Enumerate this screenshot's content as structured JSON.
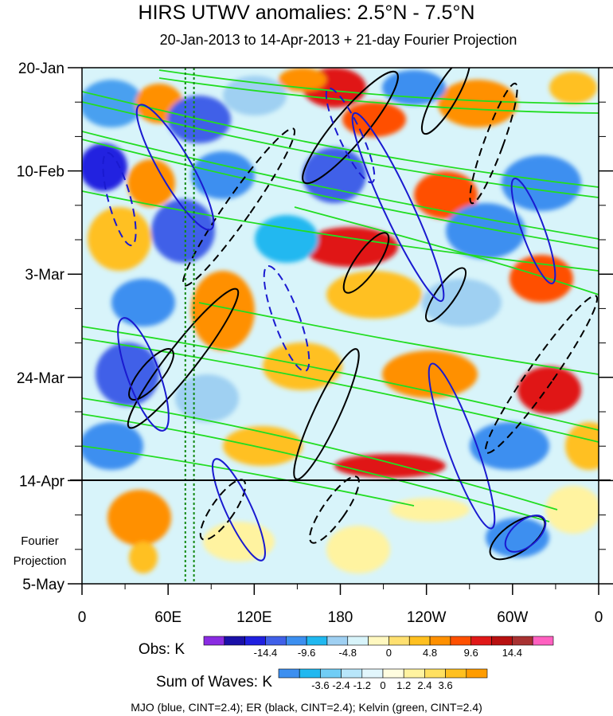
{
  "chart_data": {
    "type": "heatmap",
    "title": "HIRS UTWV anomalies: 2.5°N - 7.5°N",
    "subtitle": "20-Jan-2013 to 14-Apr-2013 + 21-day Fourier Projection",
    "y_tick_labels": [
      "20-Jan",
      "10-Feb",
      "3-Mar",
      "24-Mar",
      "14-Apr",
      "5-May"
    ],
    "x_tick_labels": [
      "0",
      "60E",
      "120E",
      "180",
      "120W",
      "60W",
      "0"
    ],
    "x_longitudes_deg_east": [
      0,
      60,
      120,
      180,
      240,
      300,
      360
    ],
    "fourier_projection_label_line1": "Fourier",
    "fourier_projection_label_line2": "Projection",
    "projection_start": "14-Apr",
    "obs_colorbar": {
      "label": "Obs: K",
      "tick_labels": [
        "-14.4",
        "-9.6",
        "-4.8",
        "0",
        "4.8",
        "9.6",
        "14.4"
      ],
      "colors": [
        "#8a2be2",
        "#1a10a8",
        "#2020e0",
        "#4060e8",
        "#3c8ff0",
        "#20b8f0",
        "#9fd0f2",
        "#d8f4fa",
        "#fff8c0",
        "#ffe070",
        "#ffc020",
        "#ff9000",
        "#ff5000",
        "#e01818",
        "#b81010",
        "#a83232",
        "#ff60c0"
      ]
    },
    "waves_colorbar": {
      "label": "Sum of Waves: K",
      "tick_labels": [
        "-3.6",
        "-2.4",
        "-1.2",
        "0",
        "1.2",
        "2.4",
        "3.6"
      ],
      "colors": [
        "#3c8ff0",
        "#20b8f0",
        "#70cdf5",
        "#b8e6fa",
        "#e2f6fc",
        "#fffde0",
        "#fff3a0",
        "#ffe060",
        "#ffc020",
        "#ff9c00"
      ]
    },
    "contour_legend": "MJO (blue, CINT=2.4); ER (black, CINT=2.4); Kelvin (green, CINT=2.4)",
    "series": [
      {
        "name": "MJO",
        "color": "#1a1ad0",
        "contour_interval": 2.4
      },
      {
        "name": "ER",
        "color": "#000000",
        "contour_interval": 2.4
      },
      {
        "name": "Kelvin",
        "color": "#22dd22",
        "contour_interval": 2.4
      }
    ],
    "reference_longitudes_dotted_green_deg_east": [
      72,
      78
    ]
  }
}
